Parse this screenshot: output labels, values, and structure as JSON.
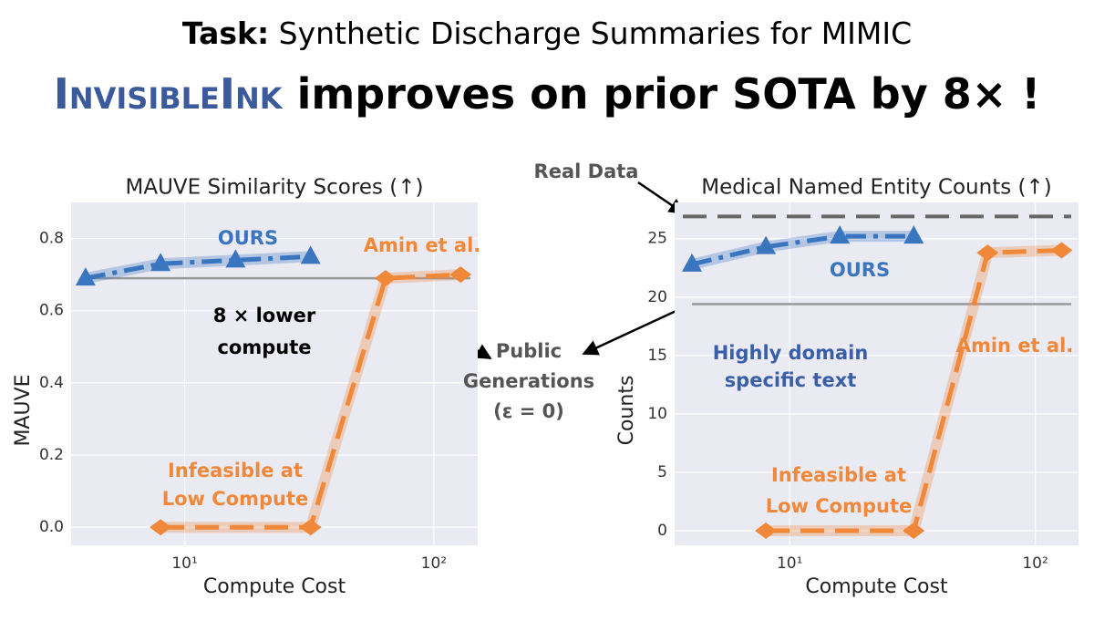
{
  "header": {
    "task_label": "Task:",
    "task": "Synthetic Discharge Summaries for MIMIC",
    "name": "InvisibleInk",
    "claim": "improves on prior SOTA by 8× !"
  },
  "annotations": [
    {
      "lines": [
        "Public",
        "Generations",
        "(ε = 0)"
      ]
    }
  ],
  "chart_data": [
    {
      "type": "line",
      "title": "MAUVE Similarity Scores (↑)",
      "xlabel": "Compute Cost",
      "ylabel": "MAUVE",
      "log_x": true,
      "grid": true,
      "background": "#eaeaf2",
      "xlim": [
        3.5,
        150
      ],
      "xticks": [
        {
          "value": 10,
          "label": "10¹"
        },
        {
          "value": 100,
          "label": "10²"
        }
      ],
      "ylim": [
        -0.05,
        0.9
      ],
      "yticks": [
        {
          "value": 0,
          "label": "0.0"
        },
        0.2,
        0.4,
        0.6,
        0.8
      ],
      "series": [
        {
          "name": "OURS",
          "color": "#3a75c0",
          "marker": "triangle",
          "linestyle": "dashdot",
          "x": [
            4,
            8,
            16,
            32
          ],
          "values": [
            0.69,
            0.73,
            0.74,
            0.75
          ]
        },
        {
          "name": "Amin et al.",
          "color": "#f0883a",
          "marker": "diamond",
          "linestyle": "dashed",
          "x": [
            8,
            32,
            64,
            128
          ],
          "values": [
            0,
            0,
            0.69,
            0.7
          ]
        }
      ],
      "reference_lines": [
        {
          "value": 0.69,
          "color": "#9a9a9a",
          "linestyle": "solid"
        }
      ],
      "annotations": [
        {
          "lines": [
            "8 × lower",
            "compute"
          ]
        },
        {
          "lines": [
            "Infeasible at",
            "Low Compute"
          ]
        }
      ]
    },
    {
      "type": "line",
      "title": "Medical Named Entity Counts (↑)",
      "xlabel": "Compute Cost",
      "ylabel": "Counts",
      "log_x": true,
      "grid": true,
      "background": "#eaeaf2",
      "xlim": [
        3.4,
        150
      ],
      "xticks": [
        {
          "value": 10,
          "label": "10¹"
        },
        {
          "value": 100,
          "label": "10²"
        }
      ],
      "ylim": [
        -1.25,
        28.1
      ],
      "yticks": [
        0,
        5,
        10,
        15,
        20,
        25
      ],
      "series": [
        {
          "name": "OURS",
          "color": "#3a75c0",
          "marker": "triangle",
          "linestyle": "dashdot",
          "x": [
            4,
            8,
            16,
            32
          ],
          "values": [
            22.8,
            24.3,
            25.2,
            25.2
          ]
        },
        {
          "name": "Amin et al.",
          "color": "#f0883a",
          "marker": "diamond",
          "linestyle": "dashed",
          "x": [
            8,
            32,
            64,
            128
          ],
          "values": [
            0,
            0,
            23.8,
            24.0
          ]
        }
      ],
      "reference_lines": [
        {
          "value": 19.4,
          "color": "#9a9a9a",
          "linestyle": "solid"
        },
        {
          "name": "Real Data",
          "value": 26.9,
          "color": "#666666",
          "linestyle": "dashed"
        }
      ],
      "annotations": [
        {
          "lines": [
            "Highly domain",
            "specific text"
          ]
        },
        {
          "lines": [
            "Infeasible at",
            "Low Compute"
          ]
        }
      ]
    }
  ]
}
